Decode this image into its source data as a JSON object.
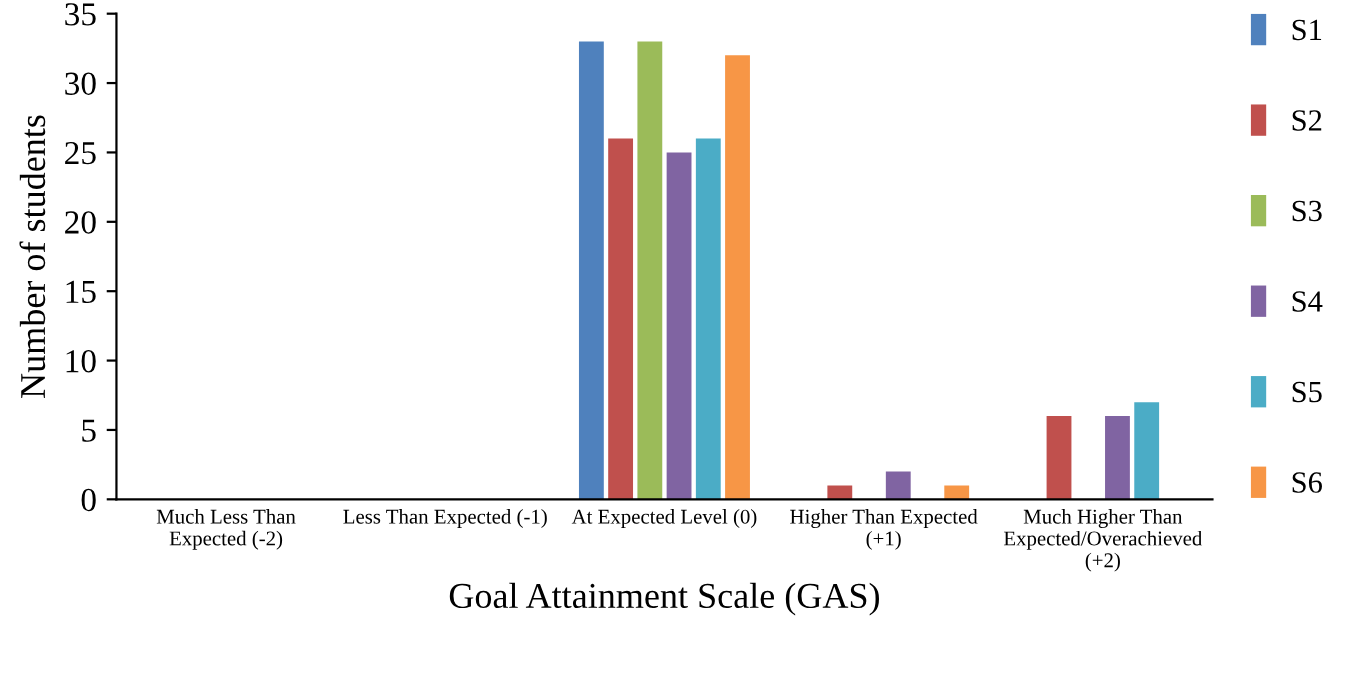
{
  "chart_data": {
    "type": "bar",
    "xlabel": "Goal Attainment Scale (GAS)",
    "ylabel": "Number of students",
    "categories": [
      "Much Less Than\nExpected (-2)",
      "Less Than Expected (-1)",
      "At Expected Level (0)",
      "Higher Than Expected\n(+1)",
      "Much Higher Than\nExpected/Overachieved\n(+2)"
    ],
    "series": [
      {
        "name": "S1",
        "color": "#4f81bd",
        "values": [
          0,
          0,
          33,
          0,
          0
        ]
      },
      {
        "name": "S2",
        "color": "#c0504d",
        "values": [
          0,
          0,
          26,
          1,
          6
        ]
      },
      {
        "name": "S3",
        "color": "#9bbb59",
        "values": [
          0,
          0,
          33,
          0,
          0
        ]
      },
      {
        "name": "S4",
        "color": "#8064a2",
        "values": [
          0,
          0,
          25,
          2,
          6
        ]
      },
      {
        "name": "S5",
        "color": "#4bacc6",
        "values": [
          0,
          0,
          26,
          0,
          7
        ]
      },
      {
        "name": "S6",
        "color": "#f79646",
        "values": [
          0,
          0,
          32,
          1,
          0
        ]
      }
    ],
    "ylim": [
      0,
      35
    ],
    "yticks": [
      0,
      5,
      10,
      15,
      20,
      25,
      30,
      35
    ],
    "grid": false,
    "legend": "right"
  }
}
